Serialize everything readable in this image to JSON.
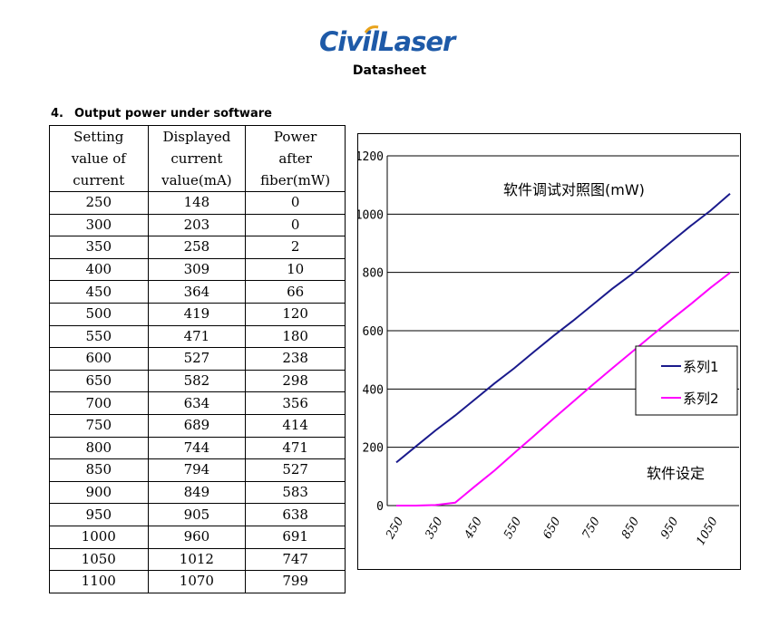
{
  "header": {
    "logo_part1": "Civil",
    "logo_part2": "Laser",
    "subtitle": "Datasheet"
  },
  "section": {
    "number": "4.",
    "title": "Output power under software"
  },
  "table": {
    "headers": [
      [
        "Setting",
        "value of",
        "current"
      ],
      [
        "Displayed",
        "current",
        "value(mA)"
      ],
      [
        "Power",
        "after",
        "fiber(mW)"
      ]
    ],
    "rows": [
      [
        "250",
        "148",
        "0"
      ],
      [
        "300",
        "203",
        "0"
      ],
      [
        "350",
        "258",
        "2"
      ],
      [
        "400",
        "309",
        "10"
      ],
      [
        "450",
        "364",
        "66"
      ],
      [
        "500",
        "419",
        "120"
      ],
      [
        "550",
        "471",
        "180"
      ],
      [
        "600",
        "527",
        "238"
      ],
      [
        "650",
        "582",
        "298"
      ],
      [
        "700",
        "634",
        "356"
      ],
      [
        "750",
        "689",
        "414"
      ],
      [
        "800",
        "744",
        "471"
      ],
      [
        "850",
        "794",
        "527"
      ],
      [
        "900",
        "849",
        "583"
      ],
      [
        "950",
        "905",
        "638"
      ],
      [
        "1000",
        "960",
        "691"
      ],
      [
        "1050",
        "1012",
        "747"
      ],
      [
        "1100",
        "1070",
        "799"
      ]
    ]
  },
  "chart_data": {
    "type": "line",
    "title": "软件调试对照图(mW)",
    "xlabel": "软件设定",
    "ylabel": "",
    "x": [
      250,
      300,
      350,
      400,
      450,
      500,
      550,
      600,
      650,
      700,
      750,
      800,
      850,
      900,
      950,
      1000,
      1050,
      1100
    ],
    "x_tick_labels": [
      "250",
      "350",
      "450",
      "550",
      "650",
      "750",
      "850",
      "950",
      "1050"
    ],
    "y_tick_labels": [
      "0",
      "200",
      "400",
      "600",
      "800",
      "1000",
      "1200"
    ],
    "ylim": [
      0,
      1200
    ],
    "grid": "horizontal",
    "legend_position": "right",
    "series": [
      {
        "name": "系列1",
        "color": "#1a1a8c",
        "values": [
          148,
          203,
          258,
          309,
          364,
          419,
          471,
          527,
          582,
          634,
          689,
          744,
          794,
          849,
          905,
          960,
          1012,
          1070
        ]
      },
      {
        "name": "系列2",
        "color": "#ff00ff",
        "values": [
          0,
          0,
          2,
          10,
          66,
          120,
          180,
          238,
          298,
          356,
          414,
          471,
          527,
          583,
          638,
          691,
          747,
          799
        ]
      }
    ]
  }
}
